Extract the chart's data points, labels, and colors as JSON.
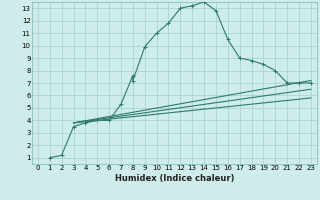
{
  "title": "",
  "xlabel": "Humidex (Indice chaleur)",
  "background_color": "#ceecea",
  "grid_color": "#aad4d0",
  "line_color": "#2d7a6e",
  "xlim": [
    -0.5,
    23.5
  ],
  "ylim": [
    0.5,
    13.5
  ],
  "xticks": [
    0,
    1,
    2,
    3,
    4,
    5,
    6,
    7,
    8,
    9,
    10,
    11,
    12,
    13,
    14,
    15,
    16,
    17,
    18,
    19,
    20,
    21,
    22,
    23
  ],
  "yticks": [
    1,
    2,
    3,
    4,
    5,
    6,
    7,
    8,
    9,
    10,
    11,
    12,
    13
  ],
  "series_main": {
    "x": [
      1,
      2,
      3,
      4,
      5,
      6,
      7,
      8,
      8,
      9,
      10,
      11,
      12,
      13,
      14,
      15,
      16,
      17,
      18,
      19,
      20,
      21,
      22,
      23
    ],
    "y": [
      1,
      1.2,
      3.5,
      3.8,
      4.0,
      4.0,
      5.3,
      7.6,
      7.2,
      9.9,
      11.0,
      11.8,
      13.0,
      13.2,
      13.5,
      12.8,
      10.5,
      9.0,
      8.8,
      8.5,
      8.0,
      7.0,
      7.0,
      7.0
    ]
  },
  "series_flat1": {
    "x": [
      3,
      23
    ],
    "y": [
      3.8,
      7.2
    ]
  },
  "series_flat2": {
    "x": [
      3,
      23
    ],
    "y": [
      3.8,
      6.5
    ]
  },
  "series_flat3": {
    "x": [
      3,
      23
    ],
    "y": [
      3.8,
      5.8
    ]
  }
}
